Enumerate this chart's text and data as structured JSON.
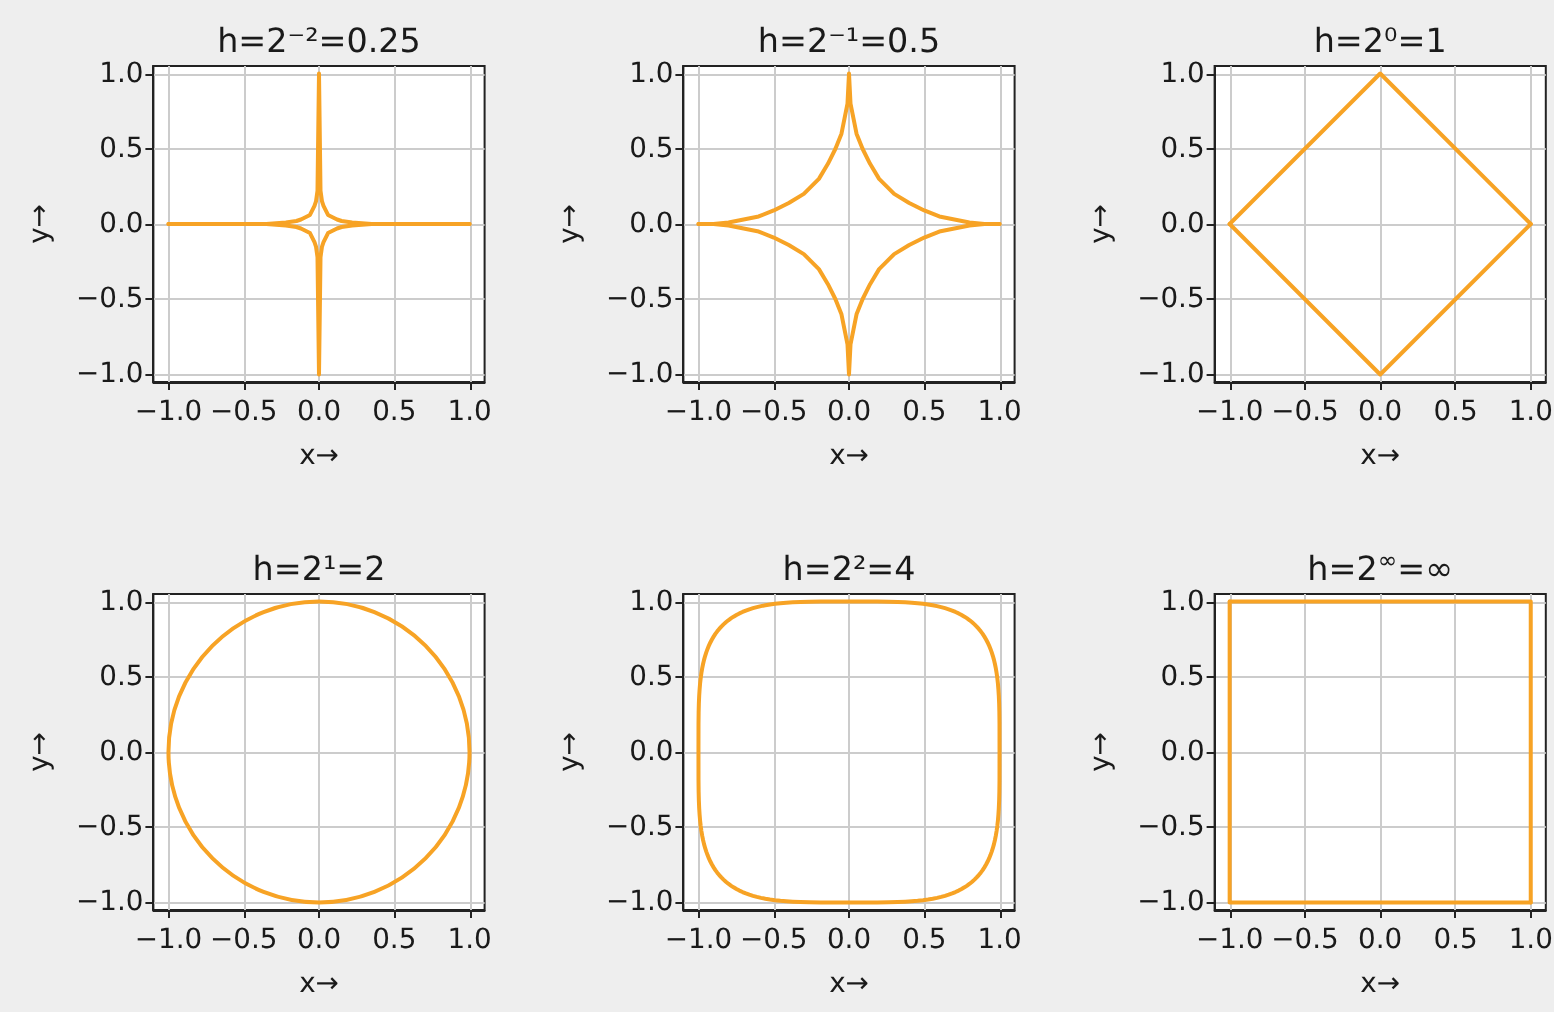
{
  "chart_data": [
    {
      "type": "line",
      "title": "h=2⁻²=0.25",
      "xlabel": "x→",
      "ylabel": "y→",
      "grid": true,
      "series": [
        {
          "color": "#f7a325",
          "x": [
            -1,
            -0.6,
            -0.35,
            -0.22,
            -0.15,
            -0.12,
            -0.08,
            -0.06,
            -0.05,
            -0.03,
            -0.02,
            -0.01,
            0,
            0.01,
            0.02,
            0.03,
            0.05,
            0.06,
            0.08,
            0.12,
            0.15,
            0.22,
            0.35,
            0.6,
            1
          ],
          "values": [
            0,
            0,
            0,
            0.01,
            0.02,
            0.03,
            0.05,
            0.06,
            0.08,
            0.12,
            0.15,
            0.22,
            1,
            0.22,
            0.15,
            0.12,
            0.08,
            0.06,
            0.05,
            0.03,
            0.02,
            0.01,
            0,
            0,
            0
          ]
        },
        {
          "color": "#f7a325",
          "x": [
            -1,
            -0.6,
            -0.35,
            -0.22,
            -0.15,
            -0.12,
            -0.08,
            -0.06,
            -0.05,
            -0.03,
            -0.02,
            -0.01,
            0,
            0.01,
            0.02,
            0.03,
            0.05,
            0.06,
            0.08,
            0.12,
            0.15,
            0.22,
            0.35,
            0.6,
            1
          ],
          "values": [
            0,
            0,
            0,
            -0.01,
            -0.02,
            -0.03,
            -0.05,
            -0.06,
            -0.08,
            -0.12,
            -0.15,
            -0.22,
            -1,
            -0.22,
            -0.15,
            -0.12,
            -0.08,
            -0.06,
            -0.05,
            -0.03,
            -0.02,
            -0.01,
            0,
            0,
            0
          ]
        }
      ],
      "xlim": [
        -1.1,
        1.1
      ],
      "ylim": [
        -1.05,
        1.05
      ],
      "xticks": [
        {
          "value": -1,
          "label": "−1.0"
        },
        {
          "value": -0.5,
          "label": "−0.5"
        },
        {
          "value": 0,
          "label": "0.0"
        },
        {
          "value": 0.5,
          "label": "0.5"
        },
        {
          "value": 1,
          "label": "1.0"
        }
      ],
      "yticks": [
        {
          "value": -1,
          "label": "−1.0"
        },
        {
          "value": -0.5,
          "label": "−0.5"
        },
        {
          "value": 0,
          "label": "0.0"
        },
        {
          "value": 0.5,
          "label": "0.5"
        },
        {
          "value": 1,
          "label": "1.0"
        }
      ]
    },
    {
      "type": "line",
      "title": "h=2⁻¹=0.5",
      "xlabel": "x→",
      "ylabel": "y→",
      "grid": true,
      "series": [
        {
          "color": "#f7a325",
          "x": [
            -1,
            -0.9,
            -0.8,
            -0.7,
            -0.6,
            -0.5,
            -0.4,
            -0.3,
            -0.25,
            -0.2,
            -0.14,
            -0.09,
            -0.05,
            -0.03,
            -0.01,
            0,
            0.01,
            0.03,
            0.05,
            0.09,
            0.14,
            0.2,
            0.25,
            0.3,
            0.4,
            0.5,
            0.6,
            0.7,
            0.8,
            0.9,
            1
          ],
          "values": [
            0,
            0,
            0.01,
            0.03,
            0.05,
            0.09,
            0.14,
            0.2,
            0.25,
            0.3,
            0.4,
            0.5,
            0.6,
            0.7,
            0.8,
            1,
            0.8,
            0.7,
            0.6,
            0.5,
            0.4,
            0.3,
            0.25,
            0.2,
            0.14,
            0.09,
            0.05,
            0.03,
            0.01,
            0,
            0
          ]
        },
        {
          "color": "#f7a325",
          "x": [
            -1,
            -0.9,
            -0.8,
            -0.7,
            -0.6,
            -0.5,
            -0.4,
            -0.3,
            -0.25,
            -0.2,
            -0.14,
            -0.09,
            -0.05,
            -0.03,
            -0.01,
            0,
            0.01,
            0.03,
            0.05,
            0.09,
            0.14,
            0.2,
            0.25,
            0.3,
            0.4,
            0.5,
            0.6,
            0.7,
            0.8,
            0.9,
            1
          ],
          "values": [
            0,
            0,
            -0.01,
            -0.03,
            -0.05,
            -0.09,
            -0.14,
            -0.2,
            -0.25,
            -0.3,
            -0.4,
            -0.5,
            -0.6,
            -0.7,
            -0.8,
            -1,
            -0.8,
            -0.7,
            -0.6,
            -0.5,
            -0.4,
            -0.3,
            -0.25,
            -0.2,
            -0.14,
            -0.09,
            -0.05,
            -0.03,
            -0.01,
            0,
            0
          ]
        }
      ],
      "xlim": [
        -1.1,
        1.1
      ],
      "ylim": [
        -1.05,
        1.05
      ],
      "xticks": [
        {
          "value": -1,
          "label": "−1.0"
        },
        {
          "value": -0.5,
          "label": "−0.5"
        },
        {
          "value": 0,
          "label": "0.0"
        },
        {
          "value": 0.5,
          "label": "0.5"
        },
        {
          "value": 1,
          "label": "1.0"
        }
      ],
      "yticks": [
        {
          "value": -1,
          "label": "−1.0"
        },
        {
          "value": -0.5,
          "label": "−0.5"
        },
        {
          "value": 0,
          "label": "0.0"
        },
        {
          "value": 0.5,
          "label": "0.5"
        },
        {
          "value": 1,
          "label": "1.0"
        }
      ]
    },
    {
      "type": "line",
      "title": "h=2⁰=1",
      "xlabel": "x→",
      "ylabel": "y→",
      "grid": true,
      "series": [
        {
          "color": "#f7a325",
          "x": [
            -1,
            0,
            1
          ],
          "values": [
            0,
            1,
            0
          ]
        },
        {
          "color": "#f7a325",
          "x": [
            -1,
            0,
            1
          ],
          "values": [
            0,
            -1,
            0
          ]
        }
      ],
      "xlim": [
        -1.1,
        1.1
      ],
      "ylim": [
        -1.05,
        1.05
      ],
      "xticks": [
        {
          "value": -1,
          "label": "−1.0"
        },
        {
          "value": -0.5,
          "label": "−0.5"
        },
        {
          "value": 0,
          "label": "0.0"
        },
        {
          "value": 0.5,
          "label": "0.5"
        },
        {
          "value": 1,
          "label": "1.0"
        }
      ],
      "yticks": [
        {
          "value": -1,
          "label": "−1.0"
        },
        {
          "value": -0.5,
          "label": "−0.5"
        },
        {
          "value": 0,
          "label": "0.0"
        },
        {
          "value": 0.5,
          "label": "0.5"
        },
        {
          "value": 1,
          "label": "1.0"
        }
      ]
    },
    {
      "type": "line",
      "title": "h=2¹=2",
      "xlabel": "x→",
      "ylabel": "y→",
      "grid": true,
      "xlim": [
        -1.1,
        1.1
      ],
      "ylim": [
        -1.05,
        1.05
      ],
      "xticks": [
        {
          "value": -1,
          "label": "−1.0"
        },
        {
          "value": -0.5,
          "label": "−0.5"
        },
        {
          "value": 0,
          "label": "0.0"
        },
        {
          "value": 0.5,
          "label": "0.5"
        },
        {
          "value": 1,
          "label": "1.0"
        }
      ],
      "yticks": [
        {
          "value": -1,
          "label": "−1.0"
        },
        {
          "value": -0.5,
          "label": "−0.5"
        },
        {
          "value": 0,
          "label": "0.0"
        },
        {
          "value": 0.5,
          "label": "0.5"
        },
        {
          "value": 1,
          "label": "1.0"
        }
      ]
    },
    {
      "type": "line",
      "title": "h=2²=4",
      "xlabel": "x→",
      "ylabel": "y→",
      "grid": true,
      "xlim": [
        -1.1,
        1.1
      ],
      "ylim": [
        -1.05,
        1.05
      ],
      "xticks": [
        {
          "value": -1,
          "label": "−1.0"
        },
        {
          "value": -0.5,
          "label": "−0.5"
        },
        {
          "value": 0,
          "label": "0.0"
        },
        {
          "value": 0.5,
          "label": "0.5"
        },
        {
          "value": 1,
          "label": "1.0"
        }
      ],
      "yticks": [
        {
          "value": -1,
          "label": "−1.0"
        },
        {
          "value": -0.5,
          "label": "−0.5"
        },
        {
          "value": 0,
          "label": "0.0"
        },
        {
          "value": 0.5,
          "label": "0.5"
        },
        {
          "value": 1,
          "label": "1.0"
        }
      ]
    },
    {
      "type": "line",
      "title": "h=2$^{∞}$=∞",
      "xlabel": "x→",
      "ylabel": "y→",
      "grid": true,
      "series": [
        {
          "color": "#f7a325",
          "x": [
            -1,
            1,
            1
          ],
          "values": [
            1,
            1,
            -1
          ]
        },
        {
          "color": "#f7a325",
          "x": [
            -1,
            -1,
            1
          ],
          "values": [
            1,
            -1,
            -1
          ]
        }
      ],
      "xlim": [
        -1.1,
        1.1
      ],
      "ylim": [
        -1.05,
        1.05
      ],
      "xticks": [
        {
          "value": -1,
          "label": "−1.0"
        },
        {
          "value": -0.5,
          "label": "−0.5"
        },
        {
          "value": 0,
          "label": "0.0"
        },
        {
          "value": 0.5,
          "label": "0.5"
        },
        {
          "value": 1,
          "label": "1.0"
        }
      ],
      "yticks": [
        {
          "value": -1,
          "label": "−1.0"
        },
        {
          "value": -0.5,
          "label": "−0.5"
        },
        {
          "value": 0,
          "label": "0.0"
        },
        {
          "value": 0.5,
          "label": "0.5"
        },
        {
          "value": 1,
          "label": "1.0"
        }
      ]
    }
  ]
}
